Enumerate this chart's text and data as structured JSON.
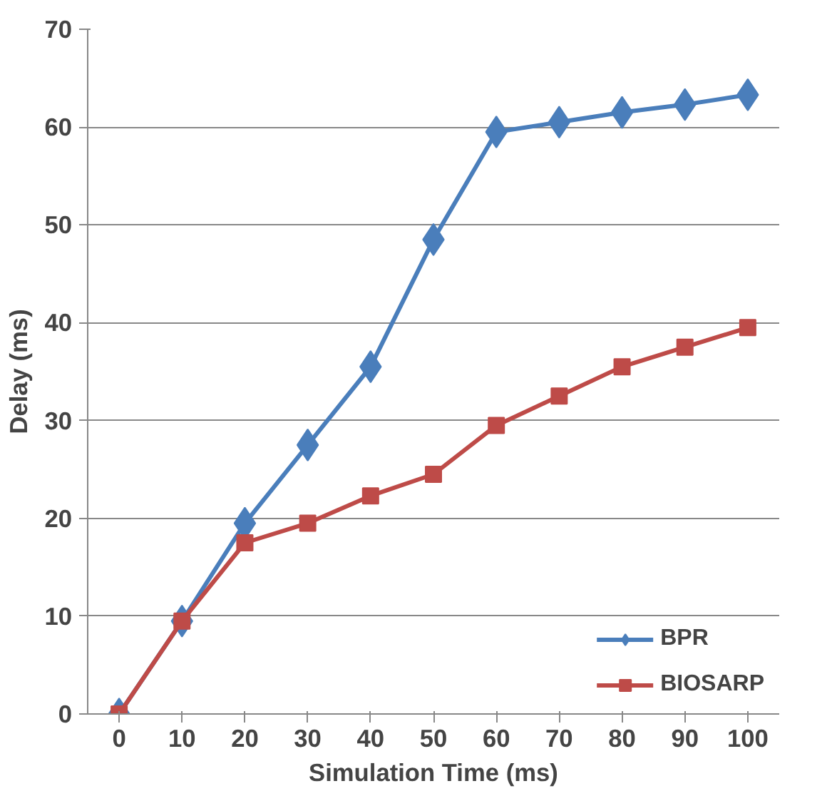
{
  "chart_data": {
    "type": "line",
    "xlabel": "Simulation Time (ms)",
    "ylabel": "Delay (ms)",
    "categories": [
      "0",
      "10",
      "20",
      "30",
      "40",
      "50",
      "60",
      "70",
      "80",
      "90",
      "100"
    ],
    "ylim": [
      0,
      70
    ],
    "yticks": [
      0,
      10,
      20,
      30,
      40,
      50,
      60,
      70
    ],
    "grid": "y",
    "legend": "bottom right",
    "line_style": "solid",
    "series": [
      {
        "name": "BPR",
        "color": "#4a7ebb",
        "marker": "diamond",
        "values": [
          0,
          9.5,
          19.5,
          27.5,
          35.5,
          48.5,
          59.5,
          60.5,
          61.5,
          62.3,
          63.3
        ]
      },
      {
        "name": "BIOSARP",
        "color": "#be4b48",
        "marker": "square",
        "values": [
          0,
          9.5,
          17.5,
          19.5,
          22.3,
          24.5,
          29.5,
          32.5,
          35.5,
          37.5,
          39.5
        ]
      }
    ]
  }
}
